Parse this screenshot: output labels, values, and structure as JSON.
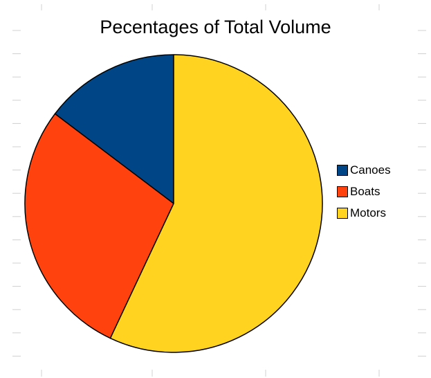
{
  "chart_data": {
    "type": "pie",
    "title": "Pecentages of Total Volume",
    "categories": [
      "Canoes",
      "Boats",
      "Motors"
    ],
    "values": [
      14.7,
      28.3,
      57.0
    ],
    "colors": [
      "#004586",
      "#ff420e",
      "#ffd320"
    ],
    "legend_position": "right",
    "start_angle_deg": 0,
    "direction": "counterclockwise"
  }
}
